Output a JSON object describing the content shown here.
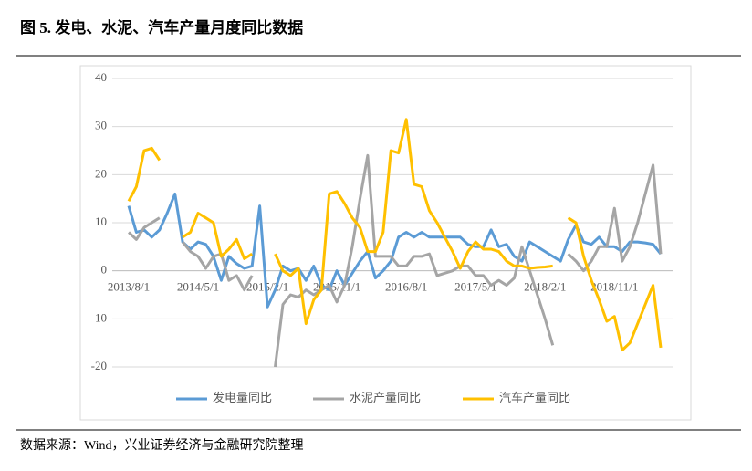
{
  "chart_data": {
    "type": "line",
    "title": "图 5. 发电、水泥、汽车产量月度同比数据",
    "source": "数据来源：Wind，兴业证券经济与金融研究院整理",
    "categories": [
      "2013/8/1",
      null,
      null,
      null,
      null,
      null,
      null,
      null,
      null,
      "2014/5/1",
      null,
      null,
      null,
      null,
      null,
      null,
      null,
      null,
      "2015/2/1",
      null,
      null,
      null,
      null,
      null,
      null,
      null,
      null,
      "2015/11/1",
      null,
      null,
      null,
      null,
      null,
      null,
      null,
      null,
      "2016/8/1",
      null,
      null,
      null,
      null,
      null,
      null,
      null,
      null,
      "2017/5/1",
      null,
      null,
      null,
      null,
      null,
      null,
      null,
      null,
      "2018/2/1",
      null,
      null,
      null,
      null,
      null,
      null,
      null,
      null,
      "2018/11/1",
      null,
      null,
      null,
      null,
      null,
      null
    ],
    "series": [
      {
        "name": "发电量同比",
        "color": "#5b9bd5",
        "values": [
          13.5,
          8,
          8.5,
          7,
          8.5,
          12,
          16,
          6,
          4.5,
          6,
          5.5,
          3,
          -2,
          3,
          1.5,
          0.5,
          1,
          13.5,
          -7.5,
          -4,
          1,
          0,
          0.5,
          -2,
          1,
          -3,
          -4,
          0,
          -3,
          -0.5,
          2,
          4,
          -1.5,
          0,
          2,
          7,
          8,
          7,
          8,
          7,
          7,
          7,
          7,
          7,
          5.5,
          5,
          5,
          8.5,
          5,
          5.5,
          3,
          2,
          6,
          5,
          4,
          3,
          2,
          6.5,
          9.5,
          6,
          5.5,
          7,
          5,
          5,
          4,
          6,
          6,
          5.8,
          5.5,
          3.5
        ]
      },
      {
        "name": "水泥产量同比",
        "color": "#a5a5a5",
        "values": [
          8,
          6.5,
          9,
          10,
          11,
          null,
          null,
          6,
          4,
          3,
          0.5,
          3,
          3.5,
          -2,
          -1,
          -4,
          -1,
          null,
          null,
          -20,
          -7,
          -5,
          -5.5,
          -4,
          -5,
          -4,
          -3,
          -6.5,
          -3,
          5,
          15,
          24,
          3,
          3,
          3,
          1,
          1,
          3,
          3,
          3.5,
          -1,
          -0.5,
          0,
          1,
          1,
          -1,
          -1,
          -3,
          -2,
          -3,
          -1.5,
          5,
          0,
          -5,
          -10,
          -15.5,
          null,
          3.5,
          2,
          0,
          2,
          5,
          5,
          13,
          2,
          5,
          10,
          16,
          22,
          3.5
        ]
      },
      {
        "name": "汽车产量同比",
        "color": "#ffc000",
        "values": [
          14.5,
          17.5,
          25,
          25.5,
          23,
          null,
          null,
          7,
          8,
          12,
          11,
          10,
          3,
          4.5,
          6.5,
          2.5,
          3.5,
          null,
          null,
          3.5,
          0,
          -1,
          0.5,
          -11,
          -6,
          -4,
          16,
          16.5,
          14,
          11,
          9,
          4,
          4,
          8,
          25,
          24.5,
          31.5,
          18,
          17.5,
          12.5,
          10,
          7,
          4,
          0.5,
          4,
          6,
          4.5,
          4.5,
          4,
          2,
          1,
          1,
          0.5,
          0.7,
          0.8,
          1,
          null,
          11,
          10,
          3,
          -2,
          -6,
          -10.5,
          -9.5,
          -16.5,
          -15,
          -11,
          -7,
          -3,
          -16
        ]
      }
    ],
    "ylim": [
      -20,
      40
    ],
    "yticks": [
      -20,
      -10,
      0,
      10,
      20,
      30,
      40
    ],
    "grid": true,
    "legend": "bottom"
  }
}
